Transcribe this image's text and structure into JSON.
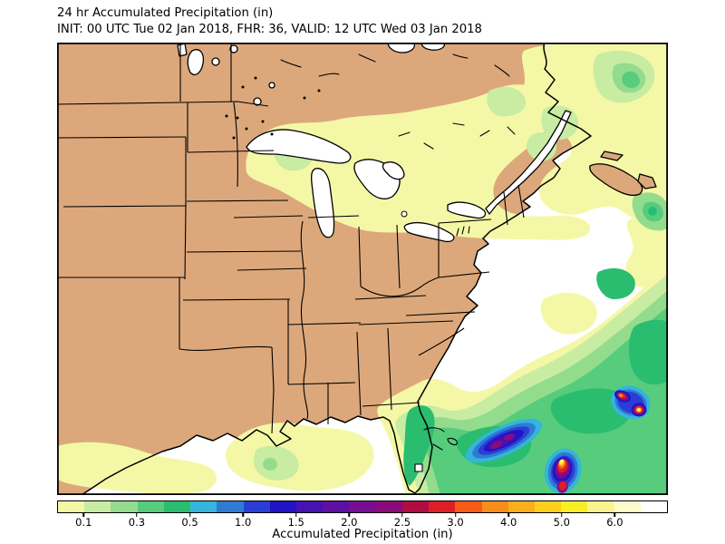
{
  "header": {
    "title": "24 hr Accumulated Precipitation (in)",
    "subtitle": "INIT: 00 UTC Tue 02 Jan 2018, FHR: 36, VALID: 12 UTC Wed 03 Jan 2018"
  },
  "map": {
    "land_color": "#dca87b",
    "water_color": "#ffffff",
    "outline_color": "#000000",
    "background_color": "#ffffff"
  },
  "colorbar": {
    "label": "Accumulated Precipitation (in)",
    "tick_labels": [
      "0.1",
      "0.3",
      "0.5",
      "1.0",
      "1.5",
      "2.0",
      "2.5",
      "3.0",
      "4.0",
      "5.0",
      "6.0"
    ],
    "tick_boundary_indices": [
      1,
      3,
      5,
      7,
      9,
      11,
      13,
      15,
      17,
      19,
      21
    ],
    "border_color": "#000000",
    "colors": [
      "#f4f8a6",
      "#c8eca2",
      "#94dc8d",
      "#57cc7d",
      "#2abd70",
      "#35b5db",
      "#2f7bd3",
      "#2a3ed6",
      "#2113c6",
      "#4811b1",
      "#5f0fa3",
      "#770d93",
      "#8c0b7c",
      "#b00d42",
      "#e01f25",
      "#f75c16",
      "#fa8c1c",
      "#fcae1b",
      "#fdd01c",
      "#fbee27",
      "#f9f48f",
      "#fdfbcb",
      "#ffffff"
    ]
  }
}
